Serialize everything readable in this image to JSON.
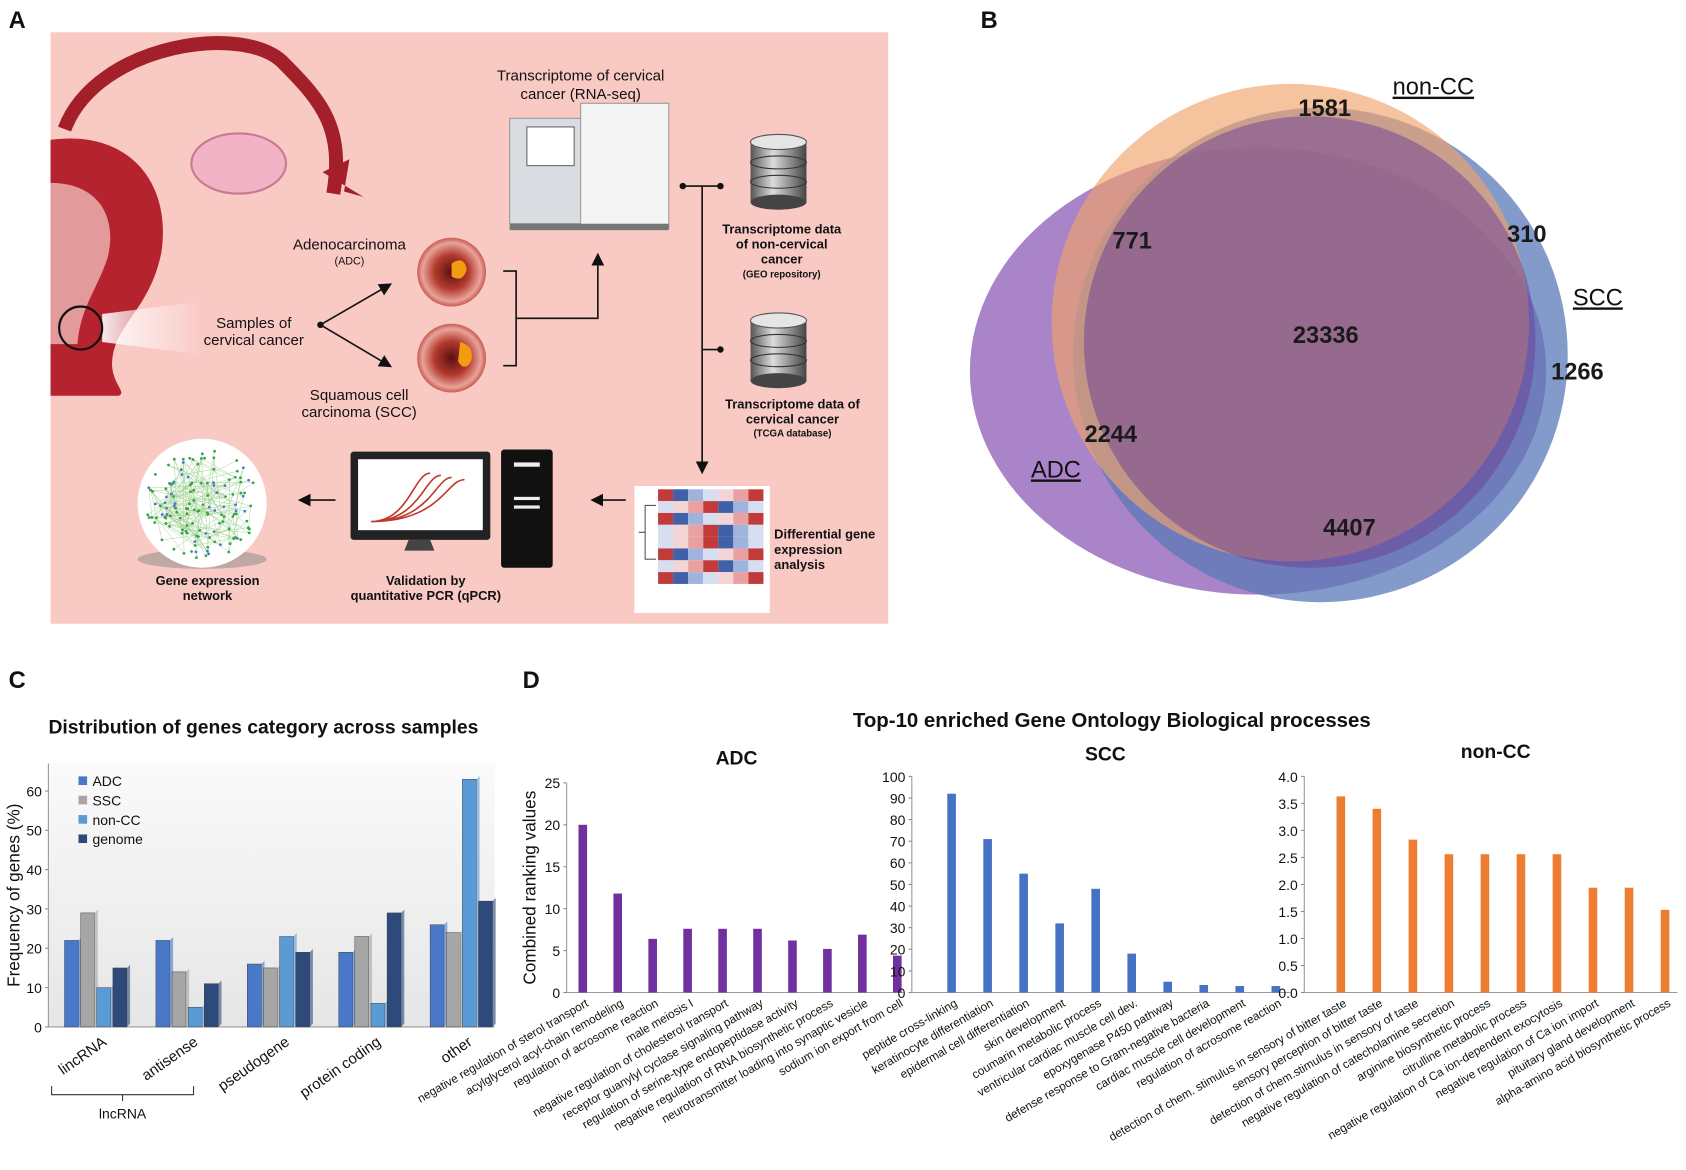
{
  "panel_labels": [
    "A",
    "B",
    "C",
    "D"
  ],
  "panel_a": {
    "sequencing": [
      "Transcriptome of cervical",
      "cancer (RNA-seq)"
    ],
    "adc": [
      "Adenocarcinoma",
      "(ADC)"
    ],
    "samples": [
      "Samples of",
      "cervical cancer"
    ],
    "scc": [
      "Squamous cell",
      "carcinoma (SCC)"
    ],
    "geo": [
      "Transcriptome data",
      "of non-cervical",
      "cancer",
      "(GEO repository)"
    ],
    "tcga": [
      "Transcriptome data of",
      "cervical cancer",
      "(TCGA database)"
    ],
    "deg": [
      "Differential gene",
      "expression",
      "analysis"
    ],
    "qpcr": [
      "Validation by",
      "quantitative PCR (qPCR)"
    ],
    "network": [
      "Gene expression",
      "network"
    ]
  },
  "venn": {
    "sets": [
      "non-CC",
      "SCC",
      "ADC"
    ],
    "regions": [
      "1581",
      "771",
      "310",
      "23336",
      "1266",
      "2244",
      "4407"
    ]
  },
  "panel_d_title": "Top-10 enriched Gene Ontology Biological processes",
  "chart_data": [
    {
      "type": "grouped_bar",
      "title": "Distribution of genes category across samples",
      "y_label": "Frequency of genes (%)",
      "categories": [
        "lincRNA",
        "antisense",
        "pseudogene",
        "protein coding",
        "other"
      ],
      "bracket_label": "lncRNA",
      "series": [
        {
          "name": "ADC",
          "color": "#4a78c9",
          "values": [
            22,
            22,
            16,
            19,
            26
          ]
        },
        {
          "name": "SSC",
          "color": "#a6a6a6",
          "values": [
            29,
            14,
            15,
            23,
            24
          ]
        },
        {
          "name": "non-CC",
          "color": "#5b9bd5",
          "values": [
            10,
            5,
            23,
            6,
            63
          ]
        },
        {
          "name": "genome",
          "color": "#2e4a7a",
          "values": [
            15,
            11,
            19,
            29,
            32
          ]
        }
      ],
      "ylim": [
        0,
        67
      ],
      "yticks": [
        0,
        10,
        20,
        30,
        40,
        50,
        60
      ],
      "legend": "upper left"
    },
    {
      "type": "bar",
      "title": "ADC",
      "y_label": "Combined ranking values",
      "color": "#7030a0",
      "categories": [
        "negative regulation of sterol transport",
        "acylglycerol acyl-chain remodeling",
        "regulation of acrosome reaction",
        "male meiosis I",
        "negative regulation of cholesterol transport",
        "receptor guanylyl cyclase signaling pathway",
        "regulation of serine-type endopeptidase activity",
        "negative regulation of RNA biosynthetic process",
        "neurotransmitter loading into synaptic vesicle",
        "sodium ion export from cell"
      ],
      "values": [
        20,
        11.8,
        6.4,
        7.6,
        7.6,
        7.6,
        6.2,
        5.2,
        6.9,
        4.4
      ],
      "ylim": [
        0,
        25
      ],
      "yticks": [
        0,
        5,
        10,
        15,
        20,
        25
      ]
    },
    {
      "type": "bar",
      "title": "SCC",
      "color": "#4472c4",
      "categories": [
        "peptide cross-linking",
        "keratinocyte differentiation",
        "epidermal cell differentiation",
        "skin development",
        "coumarin metabolic process",
        "ventricular cardiac muscle cell dev.",
        "epoxygenase P450 pathway",
        "defense response to Gram-negative bacteria",
        "cardiac muscle cell development",
        "regulation of acrosome reaction"
      ],
      "values": [
        92,
        71,
        55,
        32,
        48,
        18,
        5,
        3.5,
        3,
        3
      ],
      "ylim": [
        0,
        100
      ],
      "yticks": [
        0,
        10,
        20,
        30,
        40,
        50,
        60,
        70,
        80,
        90,
        100
      ]
    },
    {
      "type": "bar",
      "title": "non-CC",
      "color": "#ed7d31",
      "categories": [
        "detection of chem. stimulus in sensory of bitter taste",
        "sensory perception of bitter taste",
        "detection of chem.stimulus in sensory of taste",
        "negative regulation of catecholamine secretion",
        "arginine biosynthetic process",
        "citrulline metabolic process",
        "negative regulation of Ca ion-dependent exocytosis",
        "negative regulation of Ca ion import",
        "pituitary gland development",
        "alpha-amino acid biosynthetic process"
      ],
      "values": [
        3.63,
        3.4,
        2.83,
        2.56,
        2.56,
        2.56,
        2.56,
        1.94,
        1.94,
        1.53
      ],
      "ylim": [
        0,
        4
      ],
      "yticks": [
        {
          "value": 0,
          "label": "0.0"
        },
        {
          "value": 0.5,
          "label": "0.5"
        },
        {
          "value": 1,
          "label": "1.0"
        },
        {
          "value": 1.5,
          "label": "1.5"
        },
        {
          "value": 2,
          "label": "2.0"
        },
        {
          "value": 2.5,
          "label": "2.5"
        },
        {
          "value": 3,
          "label": "3.0"
        },
        {
          "value": 3.5,
          "label": "3.5"
        },
        {
          "value": 4,
          "label": "4.0"
        }
      ]
    }
  ]
}
